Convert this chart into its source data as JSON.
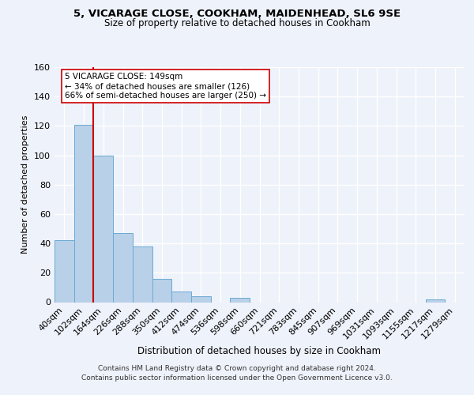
{
  "title1": "5, VICARAGE CLOSE, COOKHAM, MAIDENHEAD, SL6 9SE",
  "title2": "Size of property relative to detached houses in Cookham",
  "xlabel": "Distribution of detached houses by size in Cookham",
  "ylabel": "Number of detached properties",
  "bin_labels": [
    "40sqm",
    "102sqm",
    "164sqm",
    "226sqm",
    "288sqm",
    "350sqm",
    "412sqm",
    "474sqm",
    "536sqm",
    "598sqm",
    "660sqm",
    "721sqm",
    "783sqm",
    "845sqm",
    "907sqm",
    "969sqm",
    "1031sqm",
    "1093sqm",
    "1155sqm",
    "1217sqm",
    "1279sqm"
  ],
  "bar_heights": [
    42,
    121,
    100,
    47,
    38,
    16,
    7,
    4,
    0,
    3,
    0,
    0,
    0,
    0,
    0,
    0,
    0,
    0,
    0,
    2,
    0
  ],
  "bar_color": "#b8d0e8",
  "bar_edge_color": "#6aaad4",
  "red_line_color": "#cc0000",
  "annotation_text": "5 VICARAGE CLOSE: 149sqm\n← 34% of detached houses are smaller (126)\n66% of semi-detached houses are larger (250) →",
  "annotation_box_color": "#ffffff",
  "annotation_box_edge": "#cc0000",
  "footer_text": "Contains HM Land Registry data © Crown copyright and database right 2024.\nContains public sector information licensed under the Open Government Licence v3.0.",
  "background_color": "#eef2fa",
  "grid_color": "#ffffff",
  "ylim": [
    0,
    160
  ],
  "yticks": [
    0,
    20,
    40,
    60,
    80,
    100,
    120,
    140,
    160
  ]
}
